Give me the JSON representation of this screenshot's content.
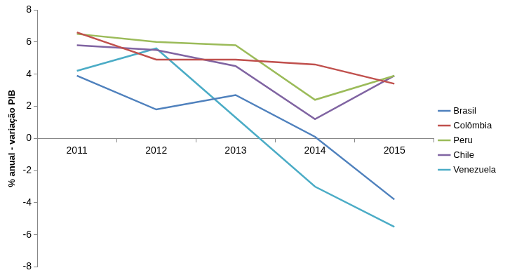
{
  "chart_data": {
    "type": "line",
    "y_label": "% anual - variação PIB",
    "categories": [
      "2011",
      "2012",
      "2013",
      "2014",
      "2015"
    ],
    "series": [
      {
        "name": "Brasil",
        "color": "#4f81bd",
        "values": [
          3.9,
          1.8,
          2.7,
          0.1,
          -3.8
        ]
      },
      {
        "name": "Colômbia",
        "color": "#c0504d",
        "values": [
          6.6,
          4.9,
          4.9,
          4.6,
          3.4
        ]
      },
      {
        "name": "Peru",
        "color": "#9bbb59",
        "values": [
          6.5,
          6.0,
          5.8,
          2.4,
          3.9
        ]
      },
      {
        "name": "Chile",
        "color": "#8064a2",
        "values": [
          5.8,
          5.5,
          4.5,
          1.2,
          3.9
        ]
      },
      {
        "name": "Venezuela",
        "color": "#4bacc6",
        "values": [
          4.2,
          5.6,
          1.3,
          -3.0,
          -5.5
        ]
      }
    ],
    "ylim": [
      -8,
      8
    ],
    "yticks": [
      -8,
      -6,
      -4,
      -2,
      0,
      2,
      4,
      6,
      8
    ],
    "grid": false,
    "legend": "right",
    "marker": "none"
  }
}
